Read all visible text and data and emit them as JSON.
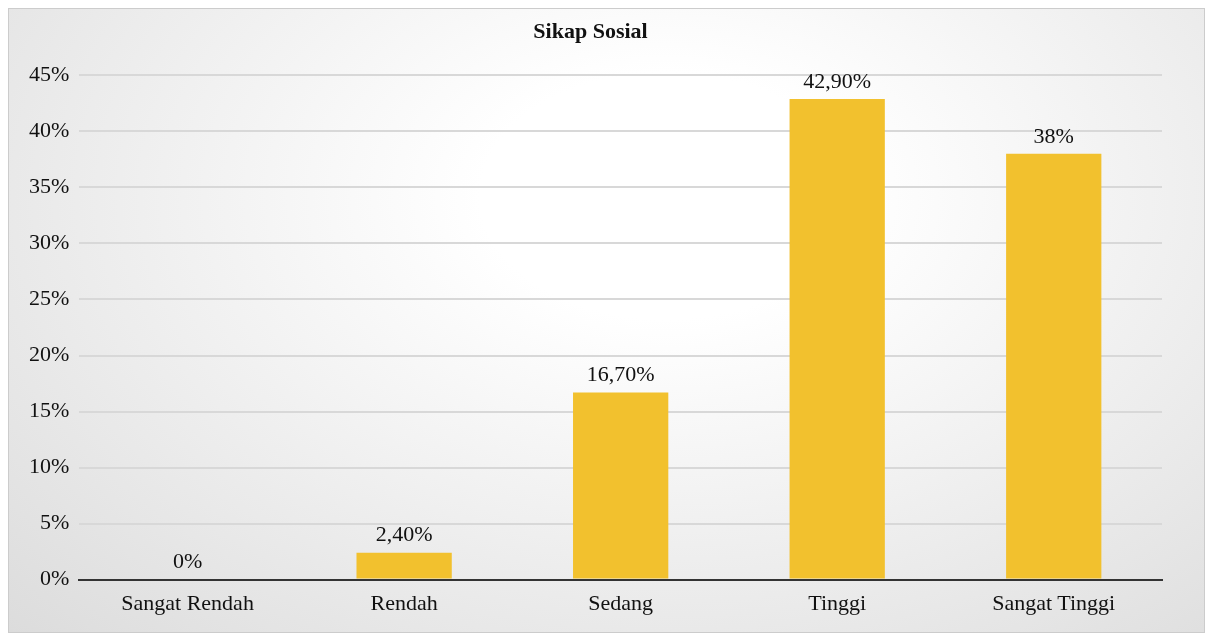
{
  "chart_data": {
    "type": "bar",
    "title": "Sikap Sosial",
    "categories": [
      "Sangat Rendah",
      "Rendah",
      "Sedang",
      "Tinggi",
      "Sangat Tinggi"
    ],
    "values": [
      0,
      2.4,
      16.7,
      42.9,
      38
    ],
    "value_labels": [
      "0%",
      "2,40%",
      "16,70%",
      "42,90%",
      "38%"
    ],
    "color": "#f2c12e",
    "ylim": [
      0,
      45
    ],
    "yticks": [
      {
        "value": 0,
        "label": "0%"
      },
      {
        "value": 5,
        "label": "5%"
      },
      {
        "value": 10,
        "label": "10%"
      },
      {
        "value": 15,
        "label": "15%"
      },
      {
        "value": 20,
        "label": "20%"
      },
      {
        "value": 25,
        "label": "25%"
      },
      {
        "value": 30,
        "label": "30%"
      },
      {
        "value": 35,
        "label": "35%"
      },
      {
        "value": 40,
        "label": "40%"
      },
      {
        "value": 45,
        "label": "45%"
      }
    ],
    "grid": "y",
    "legend": false
  }
}
